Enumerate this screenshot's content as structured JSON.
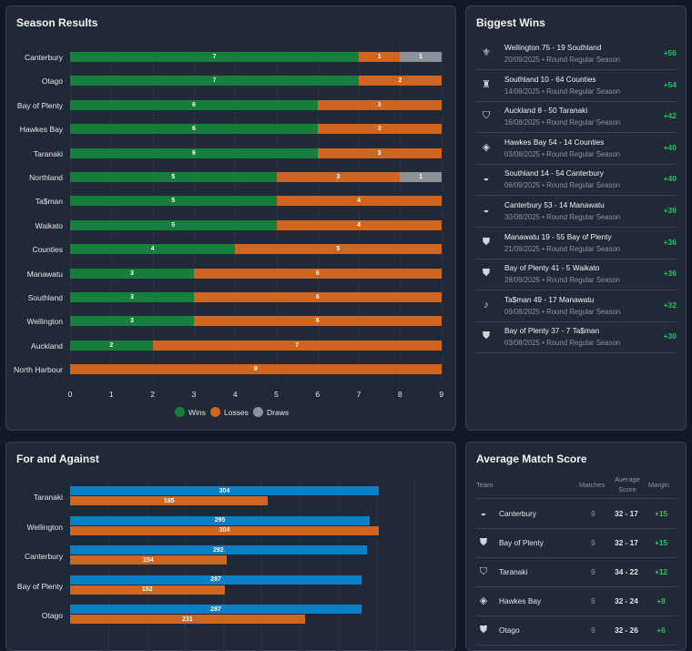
{
  "season_results": {
    "title": "Season Results",
    "legend": {
      "wins": "Wins",
      "losses": "Losses",
      "draws": "Draws"
    }
  },
  "biggest_wins": {
    "title": "Biggest Wins",
    "items": [
      {
        "icon": "crest-icon",
        "glyph": "⚜",
        "match": "Wellington 75 - 19 Southland",
        "detail": "20/09/2025 • Round Regular Season",
        "margin": "+56"
      },
      {
        "icon": "crest-icon",
        "glyph": "♜",
        "match": "Southland 10 - 64 Counties",
        "detail": "14/09/2025 • Round Regular Season",
        "margin": "+54"
      },
      {
        "icon": "crest-icon",
        "glyph": "⛉",
        "match": "Auckland 8 - 50 Taranaki",
        "detail": "16/08/2025 • Round Regular Season",
        "margin": "+42"
      },
      {
        "icon": "crest-icon",
        "glyph": "◈",
        "match": "Hawkes Bay 54 - 14 Counties",
        "detail": "03/08/2025 • Round Regular Season",
        "margin": "+40"
      },
      {
        "icon": "crest-icon",
        "glyph": "◒",
        "match": "Southland 14 - 54 Canterbury",
        "detail": "06/09/2025 • Round Regular Season",
        "margin": "+40"
      },
      {
        "icon": "crest-icon",
        "glyph": "◒",
        "match": "Canterbury 53 - 14 Manawatu",
        "detail": "30/08/2025 • Round Regular Season",
        "margin": "+39"
      },
      {
        "icon": "crest-icon",
        "glyph": "⛊",
        "match": "Manawatu 19 - 55 Bay of Plenty",
        "detail": "21/09/2025 • Round Regular Season",
        "margin": "+36"
      },
      {
        "icon": "crest-icon",
        "glyph": "⛊",
        "match": "Bay of Plenty 41 - 5 Waikato",
        "detail": "28/09/2025 • Round Regular Season",
        "margin": "+36"
      },
      {
        "icon": "crest-icon",
        "glyph": "♪",
        "match": "Ta$man 49 - 17 Manawatu",
        "detail": "09/08/2025 • Round Regular Season",
        "margin": "+32"
      },
      {
        "icon": "crest-icon",
        "glyph": "⛊",
        "match": "Bay of Plenty 37 - 7 Ta$man",
        "detail": "03/08/2025 • Round Regular Season",
        "margin": "+30"
      }
    ]
  },
  "for_against": {
    "title": "For and Against"
  },
  "average_match_score": {
    "title": "Average Match Score",
    "headers": {
      "team": "Team",
      "matches": "Matches",
      "avg1": "Average",
      "avg2": "Score",
      "margin": "Margin"
    },
    "rows": [
      {
        "glyph": "◒",
        "team": "Canterbury",
        "matches": "9",
        "score": "32 - 17",
        "margin": "+15"
      },
      {
        "glyph": "⛊",
        "team": "Bay of Plenty",
        "matches": "9",
        "score": "32 - 17",
        "margin": "+15"
      },
      {
        "glyph": "⛉",
        "team": "Taranaki",
        "matches": "9",
        "score": "34 - 22",
        "margin": "+12"
      },
      {
        "glyph": "◈",
        "team": "Hawkes Bay",
        "matches": "9",
        "score": "32 - 24",
        "margin": "+8"
      },
      {
        "glyph": "⛊",
        "team": "Otago",
        "matches": "9",
        "score": "32 - 26",
        "margin": "+6"
      }
    ]
  },
  "chart_data": [
    {
      "type": "bar",
      "orientation": "horizontal",
      "stacked": true,
      "title": "Season Results",
      "categories": [
        "Canterbury",
        "Otago",
        "Bay of Plenty",
        "Hawkes Bay",
        "Taranaki",
        "Northland",
        "Ta$man",
        "Waikato",
        "Counties",
        "Manawatu",
        "Southland",
        "Wellington",
        "Auckland",
        "North Harbour"
      ],
      "series": [
        {
          "name": "Wins",
          "color": "#15803d",
          "values": [
            7,
            7,
            6,
            6,
            6,
            5,
            5,
            5,
            4,
            3,
            3,
            3,
            2,
            0
          ]
        },
        {
          "name": "Losses",
          "color": "#d0651f",
          "values": [
            1,
            2,
            3,
            3,
            3,
            3,
            4,
            4,
            5,
            6,
            6,
            6,
            7,
            9
          ]
        },
        {
          "name": "Draws",
          "color": "#8b929c",
          "values": [
            1,
            0,
            0,
            0,
            0,
            1,
            0,
            0,
            0,
            0,
            0,
            0,
            0,
            0
          ]
        }
      ],
      "xlim": [
        0,
        9
      ],
      "xticks": [
        "0",
        "1",
        "2",
        "3",
        "4",
        "5",
        "6",
        "7",
        "8",
        "9"
      ],
      "legend": "bottom"
    },
    {
      "type": "bar",
      "orientation": "horizontal",
      "title": "For and Against",
      "categories": [
        "Taranaki",
        "Wellington",
        "Canterbury",
        "Bay of Plenty",
        "Otago"
      ],
      "series": [
        {
          "name": "For",
          "color": "#0b7fc7",
          "values": [
            304,
            295,
            292,
            287,
            287
          ]
        },
        {
          "name": "Against",
          "color": "#d0651f",
          "values": [
            195,
            304,
            154,
            152,
            231
          ]
        }
      ],
      "xlim": [
        0,
        340
      ]
    }
  ]
}
